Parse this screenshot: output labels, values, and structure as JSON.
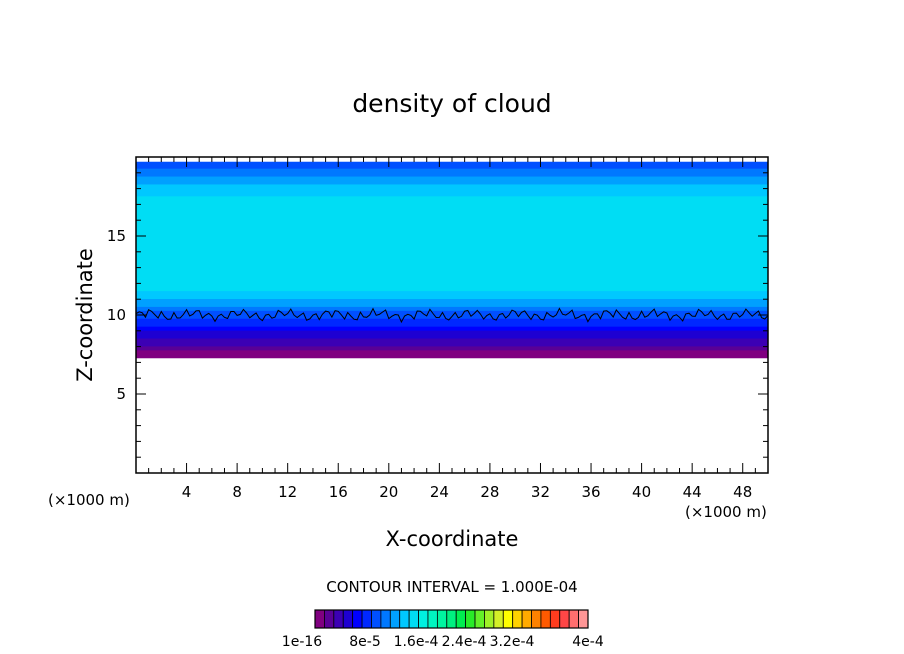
{
  "chart_data": {
    "type": "heatmap",
    "title": "density of cloud",
    "xlabel": "X-coordinate",
    "ylabel": "Z-coordinate",
    "x_unit": "(×1000 m)",
    "y_unit": "(×1000 m)",
    "xlim": [
      0,
      50
    ],
    "ylim": [
      0,
      20
    ],
    "x_ticks": [
      4,
      8,
      12,
      16,
      20,
      24,
      28,
      32,
      36,
      40,
      44,
      48
    ],
    "y_ticks": [
      5,
      10,
      15
    ],
    "contour_interval_text": "CONTOUR INTERVAL = 1.000E-04",
    "contour_line_value": 0.0001,
    "colorbar": {
      "min": 1e-16,
      "max": 0.0004,
      "tick_labels": [
        "1e-16",
        "8e-5",
        "1.6e-4",
        "2.4e-4",
        "3.2e-4",
        "4e-4"
      ],
      "colors": [
        "#800080",
        "#5a0096",
        "#3c00b4",
        "#1e00d2",
        "#0000ff",
        "#0028ff",
        "#0050ff",
        "#0078ff",
        "#00a0ff",
        "#00c8ff",
        "#00ddf4",
        "#00f0e0",
        "#00f5c0",
        "#00f5a0",
        "#00f080",
        "#00ee50",
        "#28ec28",
        "#64f028",
        "#a0f028",
        "#d4f028",
        "#ffff00",
        "#ffd200",
        "#ffaa00",
        "#ff8200",
        "#ff5a00",
        "#ff3c1e",
        "#ff4646",
        "#ff6e6e",
        "#ff9696"
      ]
    },
    "cloud_field": {
      "cloud_base_z": 7.3,
      "cloud_top_z": 19.7,
      "base_value": 1e-16,
      "core_value": 0.00014,
      "top_value": 9e-05,
      "contour_level_z_approx": 10.0
    }
  }
}
